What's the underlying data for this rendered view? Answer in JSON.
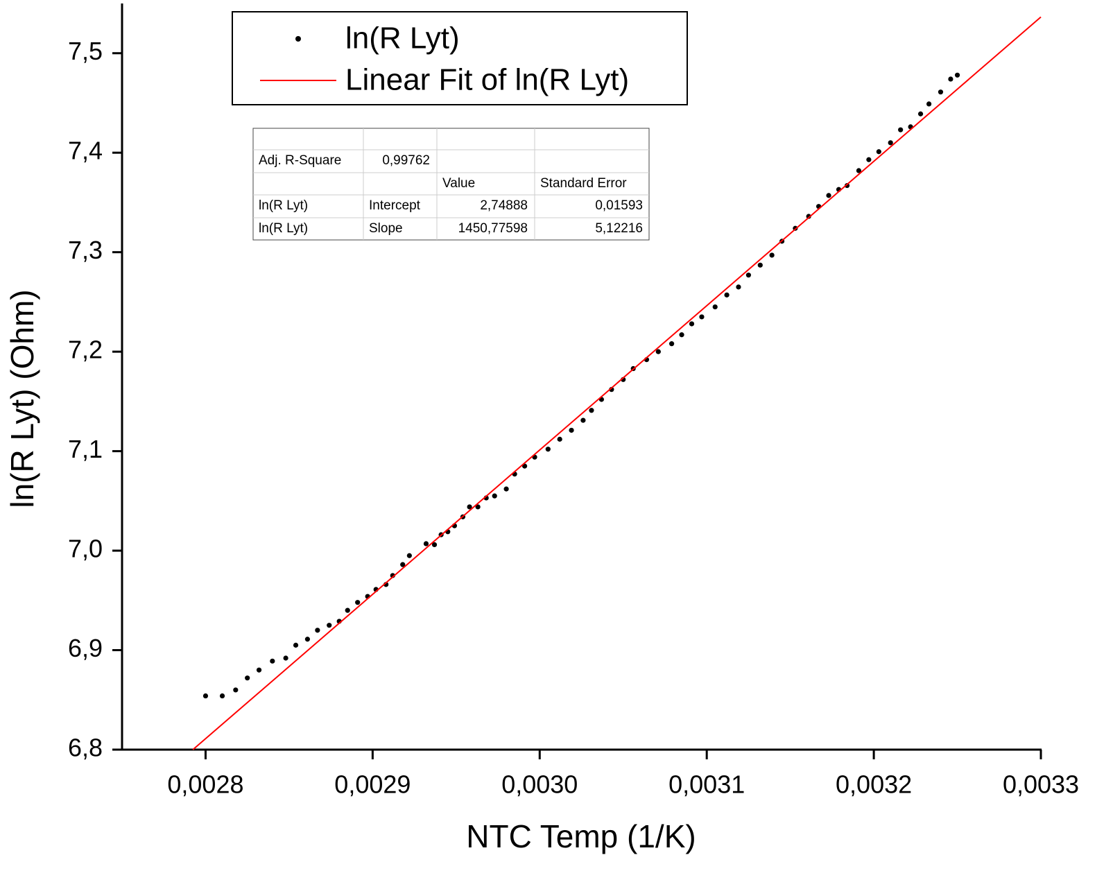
{
  "chart_data": {
    "type": "scatter",
    "x_label": "NTC Temp (1/K)",
    "y_label": "ln(R Lyt) (Ohm)",
    "xlim": [
      0.00275,
      0.0033
    ],
    "ylim": [
      6.8,
      7.55
    ],
    "xticks": [
      {
        "value": 0.0028,
        "label": "0,0028"
      },
      {
        "value": 0.0029,
        "label": "0,0029"
      },
      {
        "value": 0.003,
        "label": "0,0030"
      },
      {
        "value": 0.0031,
        "label": "0,0031"
      },
      {
        "value": 0.0032,
        "label": "0,0032"
      },
      {
        "value": 0.0033,
        "label": "0,0033"
      }
    ],
    "yticks": [
      {
        "value": 6.8,
        "label": "6,8"
      },
      {
        "value": 6.9,
        "label": "6,9"
      },
      {
        "value": 7.0,
        "label": "7,0"
      },
      {
        "value": 7.1,
        "label": "7,1"
      },
      {
        "value": 7.2,
        "label": "7,2"
      },
      {
        "value": 7.3,
        "label": "7,3"
      },
      {
        "value": 7.4,
        "label": "7,4"
      },
      {
        "value": 7.5,
        "label": "7,5"
      }
    ],
    "series": [
      {
        "name": "ln(R Lyt)",
        "type": "scatter",
        "color": "#000000",
        "x": [
          0.0028,
          0.00281,
          0.002818,
          0.002825,
          0.002832,
          0.00284,
          0.002848,
          0.002854,
          0.002861,
          0.002867,
          0.002874,
          0.00288,
          0.002885,
          0.002891,
          0.002897,
          0.002902,
          0.002908,
          0.002912,
          0.002918,
          0.002922,
          0.002932,
          0.002937,
          0.002941,
          0.002945,
          0.002949,
          0.002954,
          0.002958,
          0.002963,
          0.002968,
          0.002973,
          0.00298,
          0.002985,
          0.002991,
          0.002997,
          0.003005,
          0.003012,
          0.003019,
          0.003026,
          0.003031,
          0.003037,
          0.003043,
          0.00305,
          0.003056,
          0.003064,
          0.003071,
          0.003079,
          0.003085,
          0.003091,
          0.003097,
          0.003105,
          0.003112,
          0.003119,
          0.003125,
          0.003132,
          0.003139,
          0.003145,
          0.003153,
          0.003161,
          0.003167,
          0.003173,
          0.003179,
          0.003184,
          0.003191,
          0.003197,
          0.003203,
          0.00321,
          0.003216,
          0.003222,
          0.003228,
          0.003233,
          0.00324,
          0.003246,
          0.00325
        ],
        "values": [
          6.854,
          6.854,
          6.86,
          6.872,
          6.88,
          6.889,
          6.892,
          6.905,
          6.911,
          6.92,
          6.925,
          6.929,
          6.94,
          6.948,
          6.954,
          6.961,
          6.966,
          6.975,
          6.986,
          6.995,
          7.007,
          7.006,
          7.016,
          7.019,
          7.025,
          7.034,
          7.044,
          7.044,
          7.053,
          7.055,
          7.062,
          7.077,
          7.085,
          7.094,
          7.102,
          7.112,
          7.121,
          7.131,
          7.141,
          7.152,
          7.162,
          7.172,
          7.183,
          7.192,
          7.2,
          7.208,
          7.217,
          7.228,
          7.235,
          7.245,
          7.257,
          7.265,
          7.277,
          7.287,
          7.297,
          7.311,
          7.324,
          7.336,
          7.346,
          7.357,
          7.363,
          7.367,
          7.382,
          7.393,
          7.401,
          7.41,
          7.423,
          7.426,
          7.439,
          7.449,
          7.461,
          7.474,
          7.478
        ]
      },
      {
        "name": "Linear Fit of ln(R Lyt)",
        "type": "line",
        "color": "#ff0000",
        "x": [
          0.0027924,
          0.0033
        ],
        "values": [
          6.8,
          7.5364
        ]
      }
    ],
    "fit_table": {
      "adj_r_square": {
        "label": "Adj. R-Square",
        "value": "0,99762"
      },
      "columns": [
        "Value",
        "Standard Error"
      ],
      "rows": [
        [
          "ln(R Lyt)",
          "Intercept",
          "2,74888",
          "0,01593"
        ],
        [
          "ln(R Lyt)",
          "Slope",
          "1450,77598",
          "5,12216"
        ]
      ]
    }
  }
}
